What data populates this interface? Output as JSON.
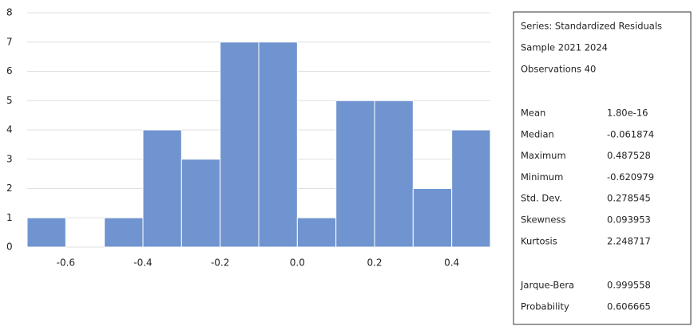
{
  "chart_data": {
    "type": "histogram",
    "bins": [
      -0.7,
      -0.6,
      -0.5,
      -0.4,
      -0.3,
      -0.2,
      -0.1,
      0,
      0.1,
      0.2,
      0.3,
      0.4,
      0.5
    ],
    "values": [
      1,
      0,
      1,
      4,
      3,
      7,
      7,
      1,
      5,
      5,
      2,
      4
    ],
    "color": "#7094cf",
    "xlim": [
      -0.7,
      0.5
    ],
    "xticks": [
      -0.6,
      -0.4,
      -0.2,
      {
        "value": 0,
        "label": "0.0"
      },
      0.2,
      0.4
    ],
    "ylim": [
      0,
      8
    ],
    "yticks": [
      0,
      1,
      2,
      3,
      4,
      5,
      6,
      7,
      8
    ],
    "grid": true,
    "info": [
      "Series: Standardized Residuals",
      "Sample 2021 2024",
      "Observations 40"
    ],
    "stats": [
      {
        "label": "Mean",
        "value": "1.80e-16"
      },
      {
        "label": "Median",
        "value": "-0.061874"
      },
      {
        "label": "Maximum",
        "value": "0.487528"
      },
      {
        "label": "Minimum",
        "value": "-0.620979"
      },
      {
        "label": "Std. Dev.",
        "value": "0.278545"
      },
      {
        "label": "Skewness",
        "value": "0.093953"
      },
      {
        "label": "Kurtosis",
        "value": "2.248717"
      }
    ],
    "tests": [
      {
        "label": "Jarque-Bera",
        "value": "0.999558"
      },
      {
        "label": "Probability",
        "value": "0.606665"
      }
    ]
  }
}
